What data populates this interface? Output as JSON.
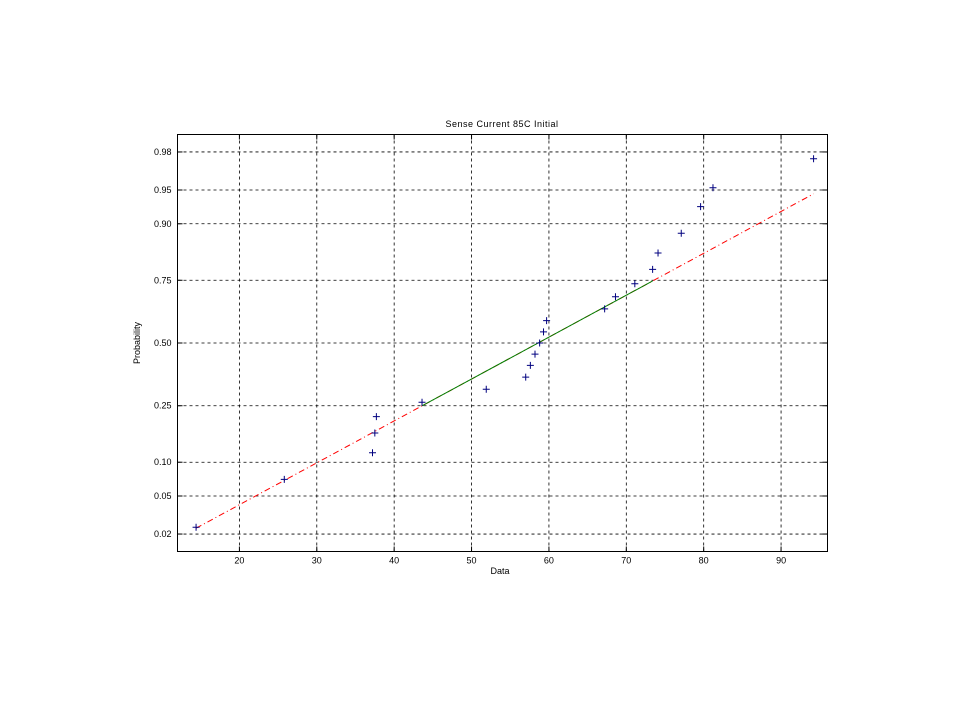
{
  "chart_data": {
    "type": "scatter",
    "title": "Sense Current 85C Initial",
    "xlabel": "Data",
    "ylabel": "Probability",
    "xlim": [
      12,
      96
    ],
    "yscale": "normal-probability",
    "ylim": [
      0.0125,
      0.9875
    ],
    "xticks": [
      20,
      30,
      40,
      50,
      60,
      70,
      80,
      90
    ],
    "yticks": [
      0.02,
      0.05,
      0.1,
      0.25,
      0.5,
      0.75,
      0.9,
      0.95,
      0.98
    ],
    "yticklabels": [
      "0.02",
      "0.05",
      "0.10",
      "0.25",
      "0.50",
      "0.75",
      "0.90",
      "0.95",
      "0.98"
    ],
    "grid": true,
    "marker": "+",
    "marker_color": "#00007f",
    "x": [
      14.4,
      25.8,
      37.2,
      37.5,
      37.7,
      43.6,
      51.9,
      57.0,
      57.6,
      58.2,
      58.8,
      59.3,
      59.7,
      67.2,
      68.6,
      71.1,
      73.4,
      74.1,
      77.1,
      79.6,
      81.2,
      94.2
    ],
    "y": [
      0.0238,
      0.0714,
      0.119,
      0.1667,
      0.2143,
      0.2619,
      0.3095,
      0.3571,
      0.4048,
      0.4524,
      0.5,
      0.5476,
      0.5952,
      0.6429,
      0.6905,
      0.7381,
      0.7857,
      0.8333,
      0.881,
      0.9286,
      0.9524,
      0.9762
    ],
    "fit_line": {
      "x_solid": [
        43.6,
        73.4
      ],
      "x_dashed": [
        14.4,
        94.2
      ],
      "mean": 58.6,
      "sd": 22.2,
      "solid_color": "#007f00",
      "dashed_color": "#ff0000"
    }
  }
}
